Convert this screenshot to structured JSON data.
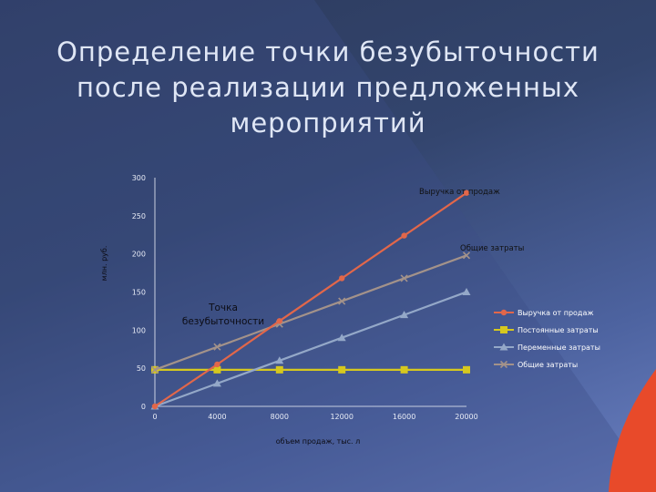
{
  "slide": {
    "title": "Определение точки безубыточности после реализации предложенных мероприятий"
  },
  "colors": {
    "revenue": "#e2674a",
    "fixed": "#d6c81e",
    "variable": "#94a8c8",
    "total": "#a3928a",
    "accent_red": "#e84a2a"
  },
  "chart_data": {
    "type": "line",
    "xlabel": "объем продаж, тыс. л",
    "ylabel": "млн. руб.",
    "x": [
      0,
      4000,
      8000,
      12000,
      16000,
      20000
    ],
    "xlim": [
      0,
      20000
    ],
    "ylim": [
      0,
      300
    ],
    "yticks": [
      0,
      50,
      100,
      150,
      200,
      250,
      300
    ],
    "grid": false,
    "legend_position": "right",
    "series": [
      {
        "name": "Выручка от продаж",
        "marker": "circle",
        "values": [
          0,
          55,
          112,
          168,
          224,
          280
        ]
      },
      {
        "name": "Постоянные затраты",
        "marker": "square",
        "values": [
          48,
          48,
          48,
          48,
          48,
          48
        ]
      },
      {
        "name": "Переменные затраты",
        "marker": "triangle",
        "values": [
          0,
          30,
          60,
          90,
          120,
          150
        ]
      },
      {
        "name": "Общие затраты",
        "marker": "x",
        "values": [
          48,
          78,
          108,
          138,
          168,
          198
        ]
      }
    ],
    "annotations": [
      {
        "text": "Выручка от продаж",
        "series": 0
      },
      {
        "text": "Общие затраты",
        "series": 3
      }
    ],
    "break_even_label": "Точка безубыточности"
  }
}
